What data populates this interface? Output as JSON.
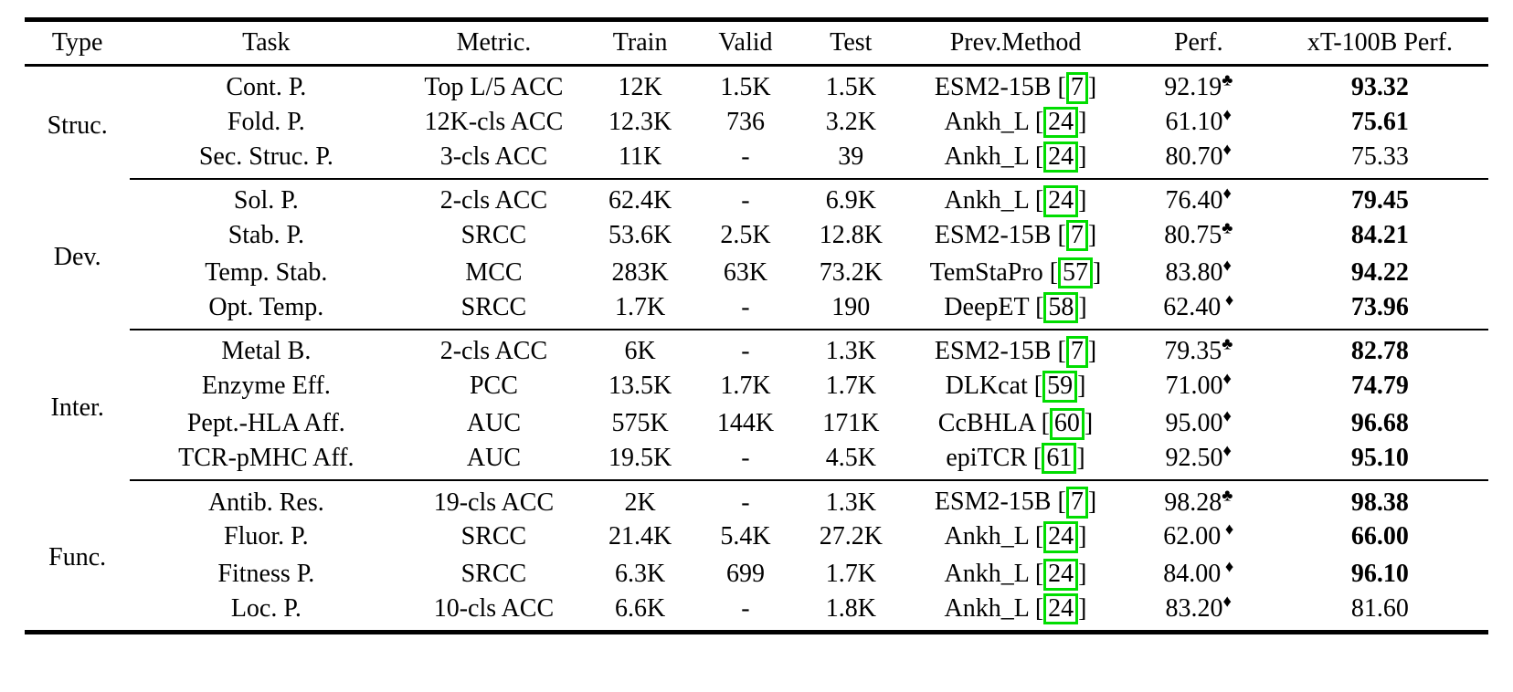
{
  "colors": {
    "citation_border": "#00dd00",
    "text": "#000000",
    "rule": "#000000",
    "background": "#ffffff"
  },
  "table": {
    "headers": [
      "Type",
      "Task",
      "Metric.",
      "Train",
      "Valid",
      "Test",
      "Prev.Method",
      "Perf.",
      "xT-100B Perf."
    ],
    "groups": [
      {
        "type": "Struc.",
        "rows": [
          {
            "task": "Cont. P.",
            "metric": "Top L/5 ACC",
            "train": "12K",
            "valid": "1.5K",
            "test": "1.5K",
            "prev_method": "ESM2-15B",
            "cite": "7",
            "perf": "92.19",
            "perf_mark": "♣",
            "perf_mark_space": false,
            "xt_perf": "93.32",
            "xt_bold": true
          },
          {
            "task": "Fold. P.",
            "metric": "12K-cls ACC",
            "train": "12.3K",
            "valid": "736",
            "test": "3.2K",
            "prev_method": "Ankh_L",
            "cite": "24",
            "perf": "61.10",
            "perf_mark": "♦",
            "perf_mark_space": false,
            "xt_perf": "75.61",
            "xt_bold": true
          },
          {
            "task": "Sec. Struc. P.",
            "metric": "3-cls ACC",
            "train": "11K",
            "valid": "-",
            "test": "39",
            "prev_method": "Ankh_L",
            "cite": "24",
            "perf": "80.70",
            "perf_mark": "♦",
            "perf_mark_space": false,
            "xt_perf": "75.33",
            "xt_bold": false
          }
        ]
      },
      {
        "type": "Dev.",
        "rows": [
          {
            "task": "Sol. P.",
            "metric": "2-cls ACC",
            "train": "62.4K",
            "valid": "-",
            "test": "6.9K",
            "prev_method": "Ankh_L",
            "cite": "24",
            "perf": "76.40",
            "perf_mark": "♦",
            "perf_mark_space": false,
            "xt_perf": "79.45",
            "xt_bold": true
          },
          {
            "task": "Stab. P.",
            "metric": "SRCC",
            "train": "53.6K",
            "valid": "2.5K",
            "test": "12.8K",
            "prev_method": "ESM2-15B",
            "cite": "7",
            "perf": "80.75",
            "perf_mark": "♣",
            "perf_mark_space": false,
            "xt_perf": "84.21",
            "xt_bold": true
          },
          {
            "task": "Temp. Stab.",
            "metric": "MCC",
            "train": "283K",
            "valid": "63K",
            "test": "73.2K",
            "prev_method": "TemStaPro",
            "cite": "57",
            "perf": "83.80",
            "perf_mark": "♦",
            "perf_mark_space": false,
            "xt_perf": "94.22",
            "xt_bold": true
          },
          {
            "task": "Opt. Temp.",
            "metric": "SRCC",
            "train": "1.7K",
            "valid": "-",
            "test": "190",
            "prev_method": "DeepET",
            "cite": "58",
            "perf": "62.40",
            "perf_mark": "♦",
            "perf_mark_space": true,
            "xt_perf": "73.96",
            "xt_bold": true
          }
        ]
      },
      {
        "type": "Inter.",
        "rows": [
          {
            "task": "Metal B.",
            "metric": "2-cls ACC",
            "train": "6K",
            "valid": "-",
            "test": "1.3K",
            "prev_method": "ESM2-15B",
            "cite": "7",
            "perf": "79.35",
            "perf_mark": "♣",
            "perf_mark_space": false,
            "xt_perf": "82.78",
            "xt_bold": true
          },
          {
            "task": "Enzyme Eff.",
            "metric": "PCC",
            "train": "13.5K",
            "valid": "1.7K",
            "test": "1.7K",
            "prev_method": "DLKcat",
            "cite": "59",
            "perf": "71.00",
            "perf_mark": "♦",
            "perf_mark_space": false,
            "xt_perf": "74.79",
            "xt_bold": true
          },
          {
            "task": "Pept.-HLA Aff.",
            "metric": "AUC",
            "train": "575K",
            "valid": "144K",
            "test": "171K",
            "prev_method": "CcBHLA",
            "cite": "60",
            "perf": "95.00",
            "perf_mark": "♦",
            "perf_mark_space": false,
            "xt_perf": "96.68",
            "xt_bold": true
          },
          {
            "task": "TCR-pMHC Aff.",
            "metric": "AUC",
            "train": "19.5K",
            "valid": "-",
            "test": "4.5K",
            "prev_method": "epiTCR",
            "cite": "61",
            "perf": "92.50",
            "perf_mark": "♦",
            "perf_mark_space": false,
            "xt_perf": "95.10",
            "xt_bold": true
          }
        ]
      },
      {
        "type": "Func.",
        "rows": [
          {
            "task": "Antib. Res.",
            "metric": "19-cls ACC",
            "train": "2K",
            "valid": "-",
            "test": "1.3K",
            "prev_method": "ESM2-15B",
            "cite": "7",
            "perf": "98.28",
            "perf_mark": "♣",
            "perf_mark_space": false,
            "xt_perf": "98.38",
            "xt_bold": true
          },
          {
            "task": "Fluor. P.",
            "metric": "SRCC",
            "train": "21.4K",
            "valid": "5.4K",
            "test": "27.2K",
            "prev_method": "Ankh_L",
            "cite": "24",
            "perf": "62.00",
            "perf_mark": "♦",
            "perf_mark_space": true,
            "xt_perf": "66.00",
            "xt_bold": true
          },
          {
            "task": "Fitness P.",
            "metric": "SRCC",
            "train": "6.3K",
            "valid": "699",
            "test": "1.7K",
            "prev_method": "Ankh_L",
            "cite": "24",
            "perf": "84.00",
            "perf_mark": "♦",
            "perf_mark_space": true,
            "xt_perf": "96.10",
            "xt_bold": true
          },
          {
            "task": "Loc. P.",
            "metric": "10-cls ACC",
            "train": "6.6K",
            "valid": "-",
            "test": "1.8K",
            "prev_method": "Ankh_L",
            "cite": "24",
            "perf": "83.20",
            "perf_mark": "♦",
            "perf_mark_space": false,
            "xt_perf": "81.60",
            "xt_bold": false
          }
        ]
      }
    ]
  }
}
